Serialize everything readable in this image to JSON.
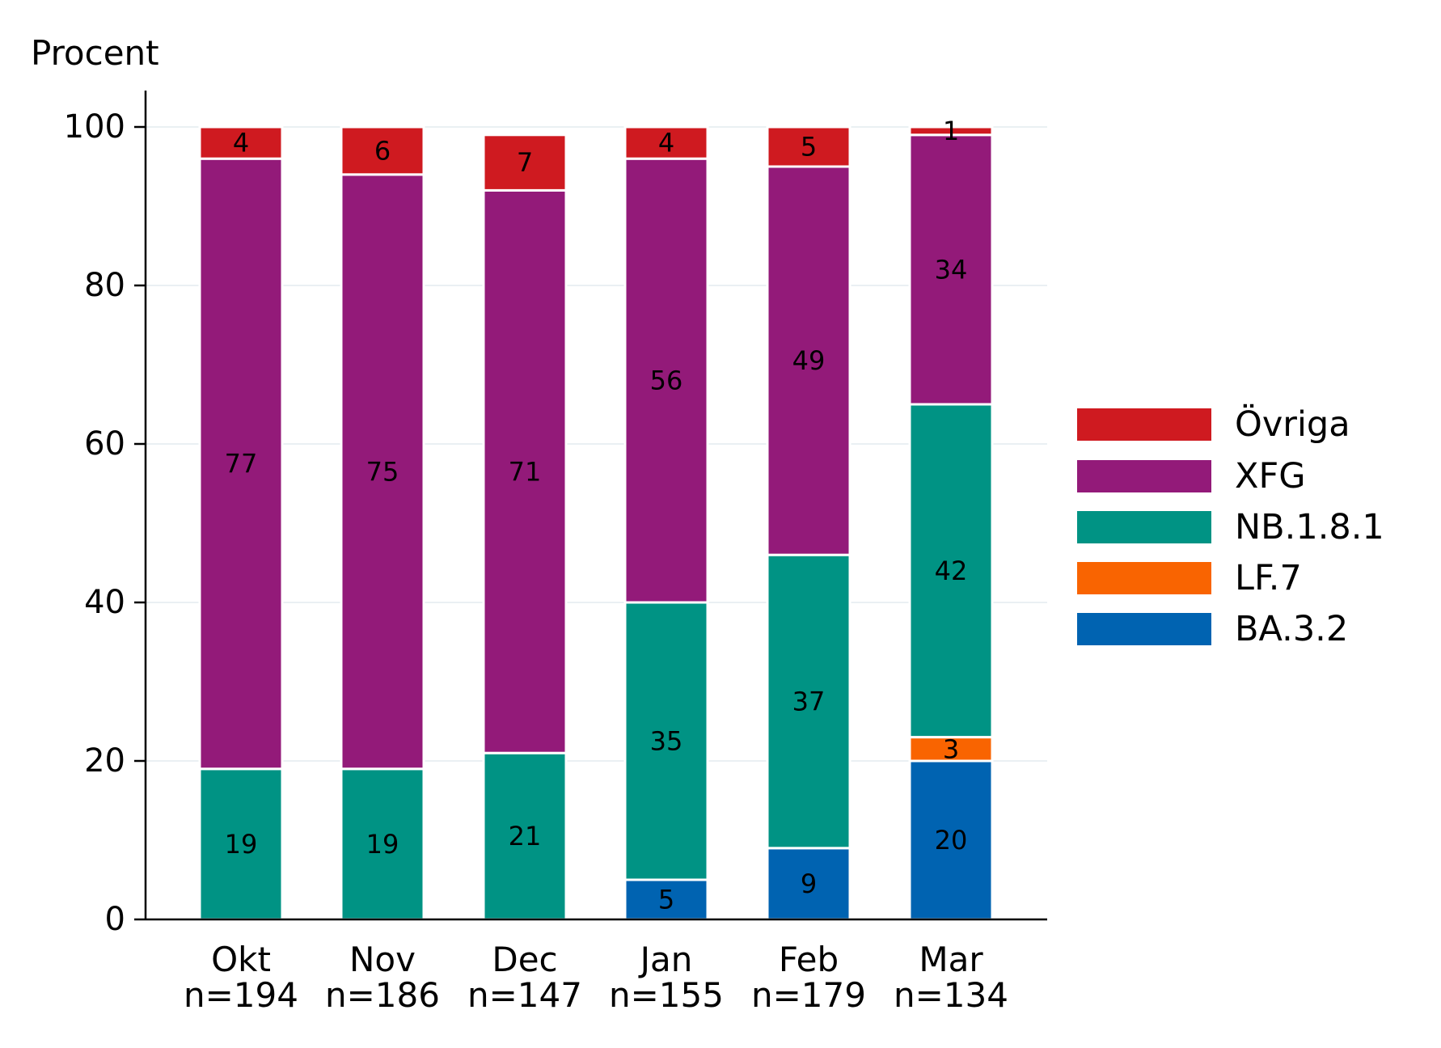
{
  "chart_data": {
    "type": "bar",
    "stacked": true,
    "ylabel": "Procent",
    "xlabel": "",
    "ylim": [
      0,
      100
    ],
    "yticks": [
      0,
      20,
      40,
      60,
      80,
      100
    ],
    "grid": true,
    "legend_position": "right",
    "categories": [
      {
        "month": "Okt",
        "n": "n=194"
      },
      {
        "month": "Nov",
        "n": "n=186"
      },
      {
        "month": "Dec",
        "n": "n=147"
      },
      {
        "month": "Jan",
        "n": "n=155"
      },
      {
        "month": "Feb",
        "n": "n=179"
      },
      {
        "month": "Mar",
        "n": "n=134"
      }
    ],
    "series": [
      {
        "name": "BA.3.2",
        "color": "#0063b1",
        "values": [
          0,
          0,
          0,
          5,
          9,
          20
        ]
      },
      {
        "name": "LF.7",
        "color": "#f96401",
        "values": [
          0,
          0,
          0,
          0,
          0,
          3
        ]
      },
      {
        "name": "NB.1.8.1",
        "color": "#009384",
        "values": [
          19,
          19,
          21,
          35,
          37,
          42
        ]
      },
      {
        "name": "XFG",
        "color": "#931a79",
        "values": [
          77,
          75,
          71,
          56,
          49,
          34
        ]
      },
      {
        "name": "Övriga",
        "color": "#cf1a20",
        "values": [
          4,
          6,
          7,
          4,
          5,
          1
        ]
      }
    ],
    "legend_order": [
      "Övriga",
      "XFG",
      "NB.1.8.1",
      "LF.7",
      "BA.3.2"
    ]
  }
}
